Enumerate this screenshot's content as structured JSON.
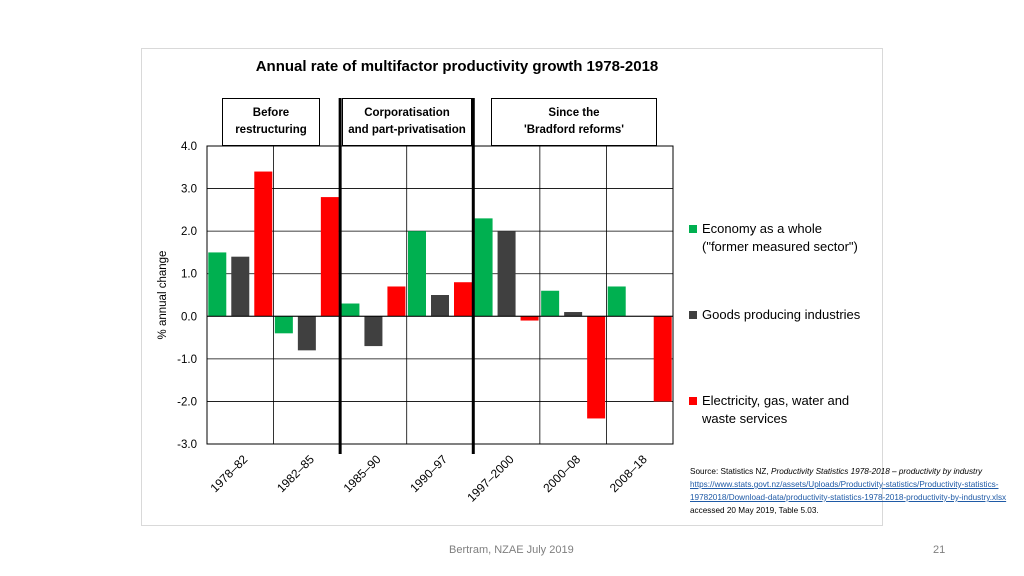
{
  "chart_data": {
    "type": "bar",
    "title": "Annual rate of multifactor productivity growth 1978-2018",
    "ylabel": "% annual change",
    "xlabel": "",
    "ylim": [
      -3.0,
      4.0
    ],
    "yticks": [
      "4.0",
      "3.0",
      "2.0",
      "1.0",
      "0.0",
      "-1.0",
      "-2.0",
      "-3.0"
    ],
    "categories": [
      "1978–82",
      "1982–85",
      "1985–90",
      "1990–97",
      "1997–2000",
      "2000–08",
      "2008–18"
    ],
    "series": [
      {
        "name": "Economy as a whole (\"former measured sector\")",
        "color": "#00b050",
        "values": [
          1.5,
          -0.4,
          0.3,
          2.0,
          2.3,
          0.6,
          0.7
        ]
      },
      {
        "name": "Goods producing industries",
        "color": "#404040",
        "values": [
          1.4,
          -0.8,
          -0.7,
          0.5,
          2.0,
          0.1,
          null
        ]
      },
      {
        "name": "Electricity, gas, water and waste services",
        "color": "#ff0000",
        "values": [
          3.4,
          2.8,
          0.7,
          0.8,
          -0.1,
          -2.4,
          -2.0
        ]
      }
    ],
    "grid": true,
    "legend_position": "right",
    "periods": [
      {
        "line1": "Before",
        "line2": "restructuring"
      },
      {
        "line1": "Corporatisation",
        "line2": "and part-privatisation"
      },
      {
        "line1": "Since the",
        "line2": "'Bradford reforms'"
      }
    ]
  },
  "legend": {
    "economy_line1": "Economy as a whole",
    "economy_line2": "(\"former measured sector\")",
    "goods": "Goods producing industries",
    "elec_line1": "Electricity, gas, water and",
    "elec_line2": "waste services"
  },
  "source": {
    "prefix": "Source: Statistics NZ, ",
    "title": "Productivity Statistics 1978-2018 – productivity by industry",
    "url": "https://www.stats.govt.nz/assets/Uploads/Productivity-statistics/Productivity-statistics-19782018/Download-data/productivity-statistics-1978-2018-productivity-by-industry.xlsx",
    "accessed": "  accessed 20 May 2019, Table 5.03."
  },
  "footer": {
    "author": "Bertram, NZAE July 2019",
    "page_number": "21"
  }
}
